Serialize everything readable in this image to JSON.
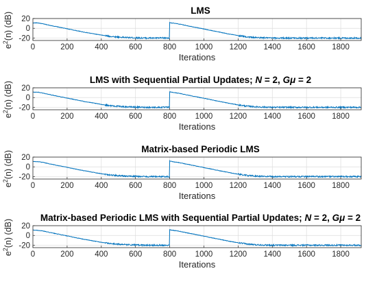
{
  "chart_data": [
    {
      "type": "line",
      "title": "LMS",
      "title_parts": [
        {
          "text": "LMS",
          "italic": false
        }
      ],
      "xlabel": "Iterations",
      "ylabel": "e2(n) (dB)",
      "xlim": [
        0,
        1920
      ],
      "ylim": [
        -25,
        20
      ],
      "xticks": [
        0,
        200,
        400,
        600,
        800,
        1000,
        1200,
        1400,
        1600,
        1800
      ],
      "yticks": [
        -20,
        0,
        20
      ],
      "grid": true,
      "series": [
        {
          "color": "#0072BD",
          "x": [
            0,
            30,
            60,
            100,
            150,
            200,
            250,
            300,
            350,
            400,
            450,
            500,
            550,
            600,
            650,
            700,
            750,
            799,
            800,
            810,
            830,
            850,
            900,
            950,
            1000,
            1050,
            1100,
            1150,
            1200,
            1250,
            1300,
            1400,
            1500,
            1600,
            1700,
            1800,
            1920
          ],
          "y": [
            11,
            11,
            9,
            6,
            2.5,
            -1,
            -4.5,
            -8,
            -11,
            -14,
            -16.5,
            -18,
            -19,
            -19.5,
            -20,
            -20,
            -20,
            -20,
            12,
            11,
            10,
            9,
            5.5,
            2,
            -1.5,
            -5,
            -8.5,
            -12,
            -15,
            -17.5,
            -19,
            -20,
            -20,
            -20,
            -20,
            -20,
            -20
          ]
        }
      ]
    },
    {
      "type": "line",
      "title": "LMS with Sequential Partial Updates; N = 2, Gμ = 2",
      "title_parts": [
        {
          "text": "LMS with Sequential Partial Updates; ",
          "italic": false
        },
        {
          "text": "N",
          "italic": true
        },
        {
          "text": " = 2, ",
          "italic": false
        },
        {
          "text": "Gμ",
          "italic": true
        },
        {
          "text": " = 2",
          "italic": false
        }
      ],
      "xlabel": "Iterations",
      "ylabel": "e2(n) (dB)",
      "xlim": [
        0,
        1920
      ],
      "ylim": [
        -25,
        20
      ],
      "xticks": [
        0,
        200,
        400,
        600,
        800,
        1000,
        1200,
        1400,
        1600,
        1800
      ],
      "yticks": [
        -20,
        0,
        20
      ],
      "grid": true,
      "series": [
        {
          "color": "#0072BD",
          "x": [
            0,
            30,
            60,
            100,
            150,
            200,
            250,
            300,
            350,
            400,
            450,
            500,
            550,
            600,
            650,
            700,
            750,
            799,
            800,
            810,
            830,
            850,
            900,
            950,
            1000,
            1050,
            1100,
            1150,
            1200,
            1250,
            1300,
            1400,
            1500,
            1600,
            1700,
            1800,
            1920
          ],
          "y": [
            11,
            11,
            9,
            6,
            2.5,
            -1,
            -4.5,
            -8,
            -11,
            -14,
            -16.5,
            -18,
            -19,
            -19.5,
            -20,
            -20,
            -20,
            -20,
            12,
            11,
            10,
            9,
            5.5,
            2,
            -1.5,
            -5,
            -8.5,
            -12,
            -15,
            -17.5,
            -19,
            -20,
            -20,
            -20,
            -20,
            -20,
            -20
          ]
        }
      ]
    },
    {
      "type": "line",
      "title": "Matrix-based Periodic LMS",
      "title_parts": [
        {
          "text": "Matrix-based Periodic LMS",
          "italic": false
        }
      ],
      "xlabel": "Iterations",
      "ylabel": "e2(n) (dB)",
      "xlim": [
        0,
        1920
      ],
      "ylim": [
        -25,
        20
      ],
      "xticks": [
        0,
        200,
        400,
        600,
        800,
        1000,
        1200,
        1400,
        1600,
        1800
      ],
      "yticks": [
        -20,
        0,
        20
      ],
      "grid": true,
      "series": [
        {
          "color": "#0072BD",
          "x": [
            0,
            30,
            60,
            100,
            150,
            200,
            250,
            300,
            350,
            400,
            450,
            500,
            550,
            600,
            650,
            700,
            750,
            799,
            800,
            810,
            830,
            850,
            900,
            950,
            1000,
            1050,
            1100,
            1150,
            1200,
            1250,
            1300,
            1400,
            1500,
            1600,
            1700,
            1800,
            1920
          ],
          "y": [
            11,
            10.5,
            9,
            6,
            2.5,
            -1,
            -4.5,
            -8,
            -11,
            -14,
            -16.5,
            -18,
            -19,
            -19.5,
            -20,
            -20,
            -20,
            -20,
            12,
            11,
            10,
            9,
            5.5,
            2,
            -1.5,
            -5,
            -8.5,
            -12,
            -15,
            -17.5,
            -19,
            -20,
            -20,
            -20,
            -20,
            -20,
            -20
          ]
        }
      ]
    },
    {
      "type": "line",
      "title": "Matrix-based Periodic LMS with Sequential Partial Updates; N = 2, Gμ = 2",
      "title_parts": [
        {
          "text": "Matrix-based Periodic LMS with Sequential Partial Updates; ",
          "italic": false
        },
        {
          "text": "N",
          "italic": true
        },
        {
          "text": " = 2, ",
          "italic": false
        },
        {
          "text": "Gμ",
          "italic": true
        },
        {
          "text": " = 2",
          "italic": false
        }
      ],
      "xlabel": "Iterations",
      "ylabel": "e2(n) (dB)",
      "xlim": [
        0,
        1920
      ],
      "ylim": [
        -25,
        20
      ],
      "xticks": [
        0,
        200,
        400,
        600,
        800,
        1000,
        1200,
        1400,
        1600,
        1800
      ],
      "yticks": [
        -20,
        0,
        20
      ],
      "grid": true,
      "series": [
        {
          "color": "#0072BD",
          "x": [
            0,
            30,
            60,
            100,
            150,
            200,
            250,
            300,
            350,
            400,
            450,
            500,
            550,
            600,
            650,
            700,
            750,
            799,
            800,
            810,
            830,
            850,
            900,
            950,
            1000,
            1050,
            1100,
            1150,
            1200,
            1250,
            1300,
            1400,
            1500,
            1600,
            1700,
            1800,
            1920
          ],
          "y": [
            11,
            10.5,
            9,
            6,
            2.5,
            -1,
            -4.5,
            -8,
            -11,
            -14,
            -16.5,
            -18,
            -19,
            -19.5,
            -20,
            -20,
            -20,
            -20,
            12,
            11,
            10,
            9,
            5.5,
            2,
            -1.5,
            -5,
            -8.5,
            -12,
            -15,
            -17.5,
            -19,
            -20,
            -20,
            -20,
            -20,
            -20,
            -20
          ]
        }
      ]
    }
  ]
}
